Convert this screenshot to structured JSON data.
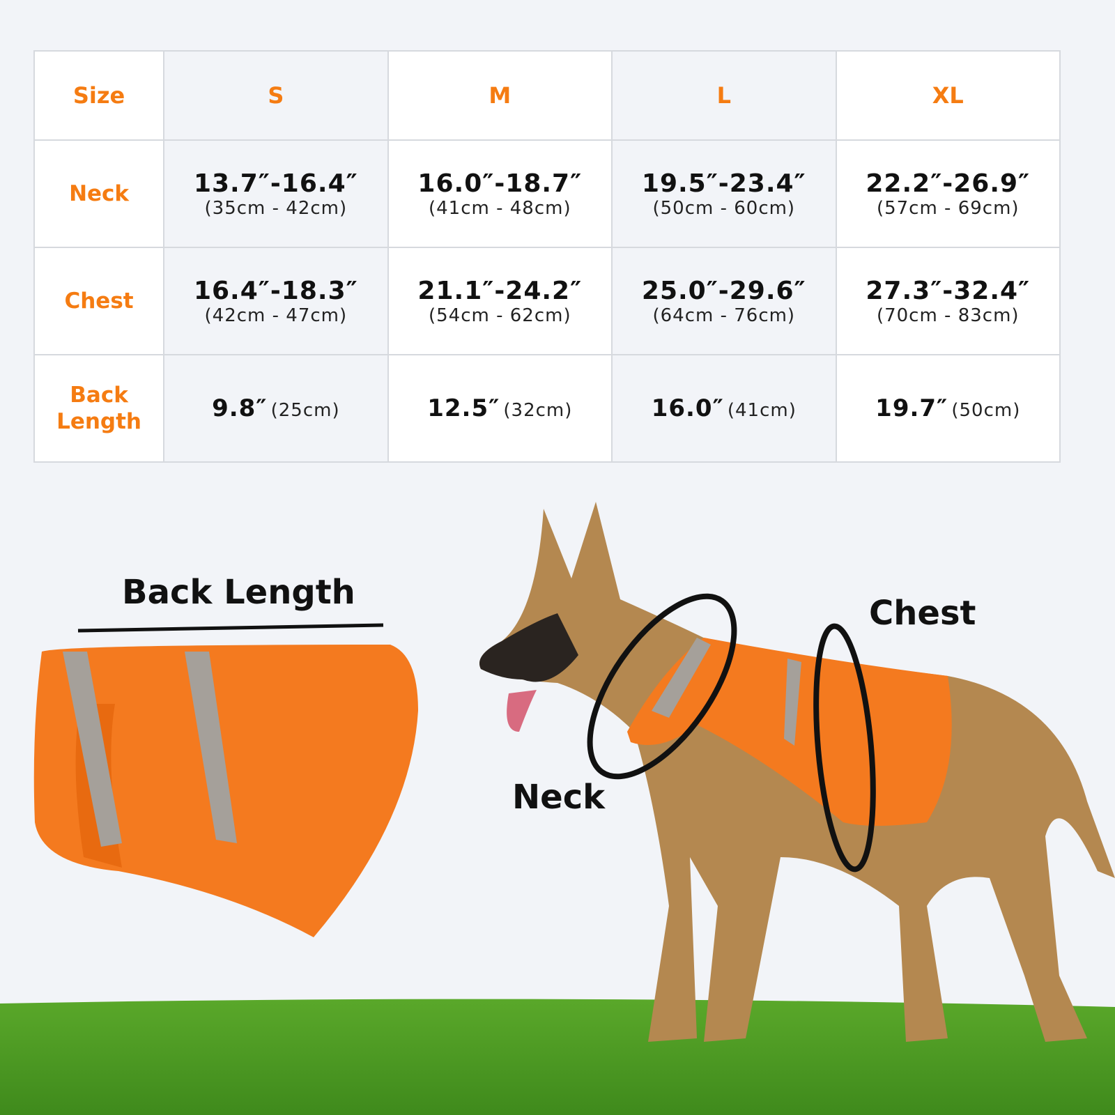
{
  "table": {
    "header": {
      "label": "Size",
      "sizes": [
        "S",
        "M",
        "L",
        "XL"
      ]
    },
    "rows": [
      {
        "label": "Neck",
        "values": [
          {
            "inch": "13.7″-16.4″",
            "cm": "(35cm - 42cm)"
          },
          {
            "inch": "16.0″-18.7″",
            "cm": "(41cm - 48cm)"
          },
          {
            "inch": "19.5″-23.4″",
            "cm": "(50cm - 60cm)"
          },
          {
            "inch": "22.2″-26.9″",
            "cm": "(57cm - 69cm)"
          }
        ]
      },
      {
        "label": "Chest",
        "values": [
          {
            "inch": "16.4″-18.3″",
            "cm": "(42cm - 47cm)"
          },
          {
            "inch": "21.1″-24.2″",
            "cm": "(54cm - 62cm)"
          },
          {
            "inch": "25.0″-29.6″",
            "cm": "(64cm - 76cm)"
          },
          {
            "inch": "27.3″-32.4″",
            "cm": "(70cm - 83cm)"
          }
        ]
      },
      {
        "label_line1": "Back",
        "label_line2": "Length",
        "values": [
          {
            "inch": "9.8″",
            "cm": "(25cm)"
          },
          {
            "inch": "12.5″",
            "cm": "(32cm)"
          },
          {
            "inch": "16.0″",
            "cm": "(41cm)"
          },
          {
            "inch": "19.7″",
            "cm": "(50cm)"
          }
        ]
      }
    ]
  },
  "illustration": {
    "back_length_label": "Back Length",
    "chest_label": "Chest",
    "neck_label": "Neck"
  },
  "colors": {
    "accent": "#f57c12",
    "background": "#f2f4f8",
    "grass": "#4e9a22"
  }
}
